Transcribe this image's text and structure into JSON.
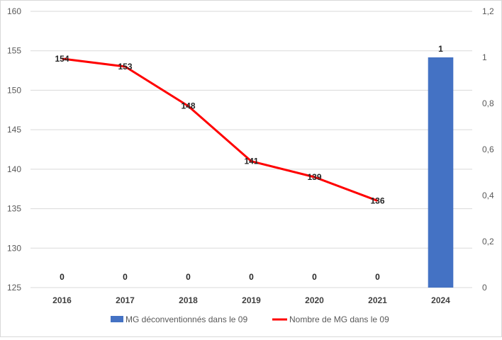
{
  "chart_data": {
    "type": "bar+line",
    "categories": [
      "2016",
      "2017",
      "2018",
      "2019",
      "2020",
      "2021",
      "2024"
    ],
    "series": [
      {
        "name": "MG déconventionnés dans le 09",
        "type": "bar",
        "axis": "right",
        "values": [
          0,
          0,
          0,
          0,
          0,
          0,
          1
        ],
        "labels": [
          "0",
          "0",
          "0",
          "0",
          "0",
          "0",
          "1"
        ],
        "color": "#4472C4"
      },
      {
        "name": "Nombre de MG dans le 09",
        "type": "line",
        "axis": "left",
        "values": [
          154,
          153,
          148,
          141,
          139,
          136,
          null
        ],
        "labels": [
          "154",
          "153",
          "148",
          "141",
          "139",
          "136",
          ""
        ],
        "color": "#FF0000"
      }
    ],
    "y_left": {
      "ylim": [
        125,
        160
      ],
      "ticks": [
        "125",
        "130",
        "135",
        "140",
        "145",
        "150",
        "155",
        "160"
      ]
    },
    "y_right": {
      "ylim": [
        0,
        1.2
      ],
      "ticks": [
        "0",
        "0,2",
        "0,4",
        "0,6",
        "0,8",
        "1",
        "1,2"
      ]
    },
    "grid": true,
    "legend_position": "bottom",
    "title": "",
    "xlabel": "",
    "ylabel": ""
  }
}
